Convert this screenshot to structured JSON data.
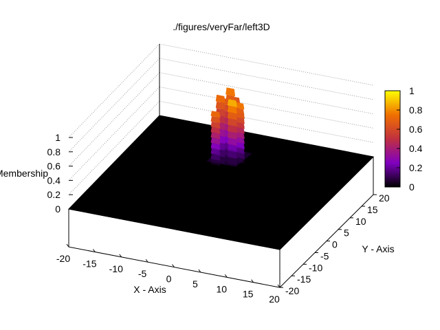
{
  "chart_data": {
    "type": "surface3d",
    "title": "./figures/veryFar/left3D",
    "xlabel": "X - Axis",
    "ylabel": "Y - Axis",
    "zlabel": "Membership",
    "xlim": [
      -20,
      20
    ],
    "ylim": [
      -20,
      20
    ],
    "zlim": [
      0,
      1
    ],
    "x_ticks": [
      "-20",
      "-15",
      "-10",
      "-5",
      "0",
      "5",
      "10",
      "15",
      "20"
    ],
    "y_ticks": [
      "-20",
      "-15",
      "-10",
      "-5",
      "0",
      "5",
      "10",
      "15",
      "20"
    ],
    "z_ticks": [
      "0",
      "0.2",
      "0.4",
      "0.6",
      "0.8",
      "1"
    ],
    "colorbar": {
      "ticks": [
        "0",
        "0.2",
        "0.4",
        "0.6",
        "0.8",
        "1"
      ],
      "colors": [
        "#000000",
        "#8000c0",
        "#c03040",
        "#f07000",
        "#ffff00"
      ]
    },
    "surface_color": "#000000",
    "peak": {
      "description": "narrow membership peak on the left region",
      "x_range": [
        -4,
        0
      ],
      "y_range": [
        6,
        11
      ],
      "max_value": 1.0,
      "columns": [
        {
          "x": -3.5,
          "y": 6,
          "z": 0.75
        },
        {
          "x": -3,
          "y": 7,
          "z": 0.95
        },
        {
          "x": -2.5,
          "y": 8,
          "z": 0.88
        },
        {
          "x": -2,
          "y": 9,
          "z": 1.0
        },
        {
          "x": -1.5,
          "y": 10,
          "z": 0.85
        },
        {
          "x": -1,
          "y": 7.5,
          "z": 0.9
        },
        {
          "x": -0.5,
          "y": 9.5,
          "z": 0.8
        },
        {
          "x": 0,
          "y": 8.5,
          "z": 0.7
        }
      ]
    }
  }
}
